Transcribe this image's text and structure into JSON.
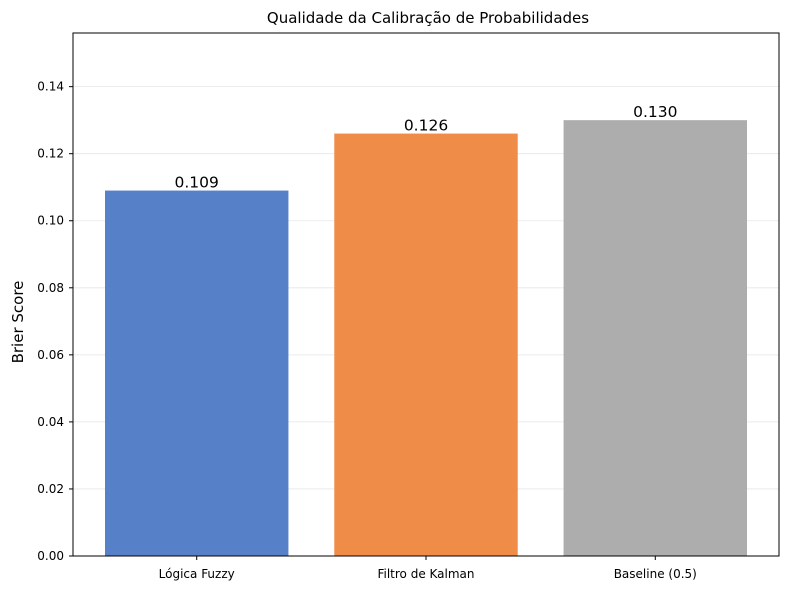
{
  "chart_data": {
    "type": "bar",
    "title": "Qualidade da Calibração de Probabilidades",
    "xlabel": "",
    "ylabel": "Brier Score",
    "categories": [
      "Lógica Fuzzy",
      "Filtro de Kalman",
      "Baseline (0.5)"
    ],
    "values": [
      0.109,
      0.126,
      0.13
    ],
    "value_labels": [
      "0.109",
      "0.126",
      "0.130"
    ],
    "bar_colors": [
      "#5681c9",
      "#ef8c48",
      "#adadad"
    ],
    "ylim": [
      0,
      0.156
    ],
    "yticks": [
      0.0,
      0.02,
      0.04,
      0.06,
      0.08,
      0.1,
      0.12,
      0.14
    ],
    "ytick_labels": [
      "0.00",
      "0.02",
      "0.04",
      "0.06",
      "0.08",
      "0.10",
      "0.12",
      "0.14"
    ],
    "grid": "y",
    "legend": "none"
  }
}
